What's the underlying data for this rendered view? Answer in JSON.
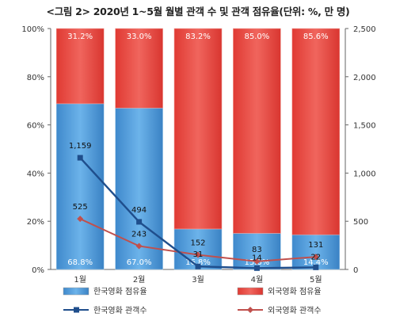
{
  "chart_data": {
    "type": "bar",
    "title": "<그림 2> 2020년 1~5월 월별 관객 수 및 관객 점유율(단위: %, 만 명)",
    "categories": [
      "1월",
      "2월",
      "3월",
      "4월",
      "5월"
    ],
    "series": [
      {
        "name": "한국영화 점유율",
        "kind": "stacked-bar",
        "axis": "left",
        "values": [
          68.8,
          67.0,
          16.8,
          15.0,
          14.4
        ],
        "labels": [
          "68.8%",
          "67.0%",
          "16.8%",
          "15.0%",
          "14.4%"
        ],
        "color": "#4f9bd8"
      },
      {
        "name": "외국영화 점유율",
        "kind": "stacked-bar",
        "axis": "left",
        "values": [
          31.2,
          33.0,
          83.2,
          85.0,
          85.6
        ],
        "labels": [
          "31.2%",
          "33.0%",
          "83.2%",
          "85.0%",
          "85.6%"
        ],
        "color": "#e8463f"
      },
      {
        "name": "한국영화 관객수",
        "kind": "line",
        "axis": "right",
        "values": [
          1159,
          494,
          31,
          14,
          22
        ],
        "labels": [
          "1,159",
          "494",
          "31",
          "14",
          "22"
        ],
        "color": "#1f4e8c"
      },
      {
        "name": "외국영화 관객수",
        "kind": "line",
        "axis": "right",
        "values": [
          525,
          243,
          152,
          83,
          131
        ],
        "labels": [
          "525",
          "243",
          "152",
          "83",
          "131"
        ],
        "color": "#c0504d"
      }
    ],
    "y_left": {
      "lim": [
        0,
        100
      ],
      "ticks": [
        "0%",
        "20%",
        "40%",
        "60%",
        "80%",
        "100%"
      ]
    },
    "y_right": {
      "lim": [
        0,
        2500
      ],
      "ticks": [
        "0",
        "500",
        "1,000",
        "1,500",
        "2,000",
        "2,500"
      ]
    },
    "grid": false,
    "legend_position": "bottom"
  }
}
